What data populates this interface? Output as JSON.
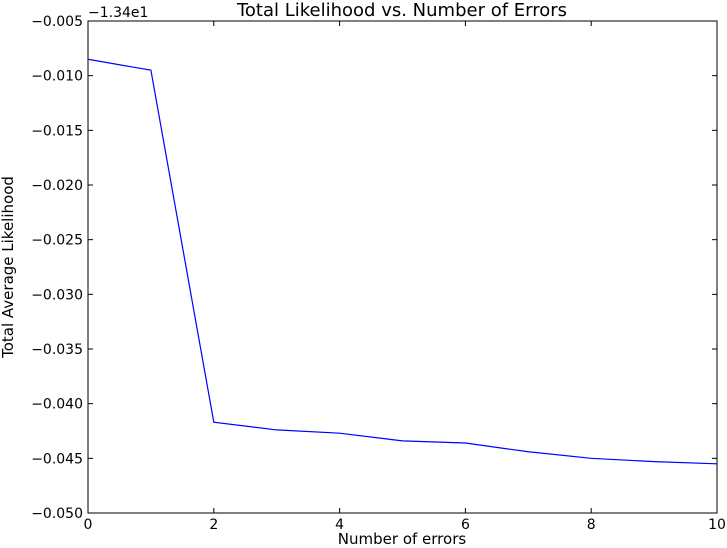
{
  "chart_data": {
    "type": "line",
    "title": "Total Likelihood vs. Number of Errors",
    "xlabel": "Number of errors",
    "ylabel": "Total Average Likelihood",
    "y_offset_label": "−1.34e1",
    "xlim": [
      0,
      10
    ],
    "ylim": [
      -0.05,
      -0.005
    ],
    "grid": false,
    "x_ticks": [
      0,
      2,
      4,
      6,
      8,
      10
    ],
    "x_tick_labels": [
      "0",
      "2",
      "4",
      "6",
      "8",
      "10"
    ],
    "y_ticks": [
      -0.005,
      -0.01,
      -0.015,
      -0.02,
      -0.025,
      -0.03,
      -0.035,
      -0.04,
      -0.045,
      -0.05
    ],
    "y_tick_labels": [
      "−0.005",
      "−0.010",
      "−0.015",
      "−0.020",
      "−0.025",
      "−0.030",
      "−0.035",
      "−0.040",
      "−0.045",
      "−0.050"
    ],
    "series": [
      {
        "color": "#0000ff",
        "x": [
          0,
          1,
          2,
          3,
          4,
          5,
          6,
          7,
          8,
          9,
          10
        ],
        "values": [
          -0.0085,
          -0.0095,
          -0.0417,
          -0.0424,
          -0.0427,
          -0.0434,
          -0.0436,
          -0.0444,
          -0.045,
          -0.0453,
          -0.0455
        ]
      }
    ]
  }
}
